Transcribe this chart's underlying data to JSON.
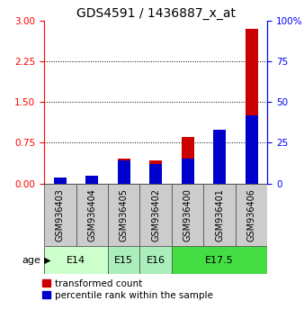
{
  "title": "GDS4591 / 1436887_x_at",
  "samples": [
    "GSM936403",
    "GSM936404",
    "GSM936405",
    "GSM936402",
    "GSM936400",
    "GSM936401",
    "GSM936406"
  ],
  "transformed_count": [
    0.08,
    0.14,
    0.45,
    0.42,
    0.85,
    0.82,
    2.85
  ],
  "percentile_rank_pct": [
    3.5,
    4.5,
    14.0,
    12.0,
    15.0,
    33.0,
    42.0
  ],
  "age_groups": [
    {
      "label": "E14",
      "samples": [
        0,
        1
      ],
      "color": "#ccffcc"
    },
    {
      "label": "E15",
      "samples": [
        2
      ],
      "color": "#aaeebb"
    },
    {
      "label": "E16",
      "samples": [
        3
      ],
      "color": "#aaeebb"
    },
    {
      "label": "E17.5",
      "samples": [
        4,
        5,
        6
      ],
      "color": "#44dd44"
    }
  ],
  "ylim_left": [
    0,
    3
  ],
  "ylim_right": [
    0,
    100
  ],
  "yticks_left": [
    0,
    0.75,
    1.5,
    2.25,
    3
  ],
  "yticks_right": [
    0,
    25,
    50,
    75,
    100
  ],
  "bar_color_red": "#cc0000",
  "bar_color_blue": "#0000cc",
  "bg_color": "#cccccc",
  "bar_width": 0.18,
  "title_fontsize": 10,
  "tick_fontsize": 7.5,
  "label_fontsize": 7,
  "legend_fontsize": 7.5
}
